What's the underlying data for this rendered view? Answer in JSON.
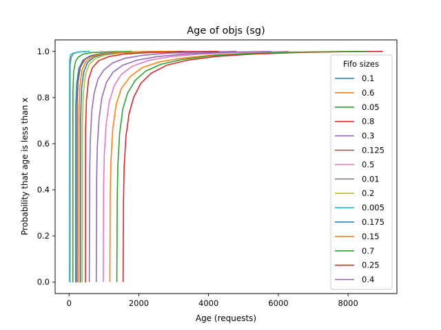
{
  "chart_data": {
    "type": "line",
    "title": "Age of objs (sg)",
    "xlabel": "Age (requests)",
    "ylabel": "Probability that age is less than x",
    "xlim": [
      -400,
      9400
    ],
    "ylim": [
      -0.05,
      1.05
    ],
    "xticks": [
      0,
      2000,
      4000,
      6000,
      8000
    ],
    "xtick_labels": [
      "0",
      "2000",
      "4000",
      "6000",
      "8000"
    ],
    "yticks": [
      0.0,
      0.2,
      0.4,
      0.6,
      0.8,
      1.0
    ],
    "ytick_labels": [
      "0.0",
      "0.2",
      "0.4",
      "0.6",
      "0.8",
      "1.0"
    ],
    "grid": false,
    "legend": {
      "title": "Fifo sizes",
      "location": "right"
    },
    "series": [
      {
        "name": "0.1",
        "color": "#1f77b4",
        "points": [
          [
            180,
            0.0
          ],
          [
            190,
            0.0
          ],
          [
            192,
            0.76
          ],
          [
            220,
            0.86
          ],
          [
            280,
            0.925
          ],
          [
            400,
            0.962
          ],
          [
            600,
            0.98
          ],
          [
            900,
            0.99
          ],
          [
            1400,
            0.996
          ],
          [
            2200,
            0.999
          ],
          [
            3200,
            1.0
          ]
        ]
      },
      {
        "name": "0.6",
        "color": "#ff7f0e",
        "points": [
          [
            1170,
            0.0
          ],
          [
            1180,
            0.38
          ],
          [
            1200,
            0.52
          ],
          [
            1250,
            0.66
          ],
          [
            1350,
            0.77
          ],
          [
            1500,
            0.84
          ],
          [
            1750,
            0.89
          ],
          [
            2100,
            0.93
          ],
          [
            2600,
            0.955
          ],
          [
            3300,
            0.972
          ],
          [
            4200,
            0.985
          ],
          [
            5500,
            0.993
          ],
          [
            7000,
            0.998
          ],
          [
            8500,
            1.0
          ]
        ]
      },
      {
        "name": "0.05",
        "color": "#2ca02c",
        "points": [
          [
            100,
            0.0
          ],
          [
            108,
            0.0
          ],
          [
            110,
            0.82
          ],
          [
            130,
            0.91
          ],
          [
            180,
            0.955
          ],
          [
            260,
            0.975
          ],
          [
            400,
            0.988
          ],
          [
            650,
            0.995
          ],
          [
            1100,
            0.998
          ],
          [
            1800,
            1.0
          ]
        ]
      },
      {
        "name": "0.8",
        "color": "#d62728",
        "points": [
          [
            1550,
            0.0
          ],
          [
            1560,
            0.35
          ],
          [
            1580,
            0.5
          ],
          [
            1630,
            0.63
          ],
          [
            1720,
            0.73
          ],
          [
            1850,
            0.8
          ],
          [
            2050,
            0.86
          ],
          [
            2350,
            0.905
          ],
          [
            2800,
            0.94
          ],
          [
            3400,
            0.962
          ],
          [
            4200,
            0.978
          ],
          [
            5200,
            0.988
          ],
          [
            6500,
            0.995
          ],
          [
            8000,
            0.999
          ],
          [
            9000,
            1.0
          ]
        ]
      },
      {
        "name": "0.3",
        "color": "#9467bd",
        "points": [
          [
            580,
            0.0
          ],
          [
            590,
            0.48
          ],
          [
            610,
            0.62
          ],
          [
            650,
            0.74
          ],
          [
            720,
            0.82
          ],
          [
            830,
            0.88
          ],
          [
            1000,
            0.92
          ],
          [
            1250,
            0.95
          ],
          [
            1600,
            0.97
          ],
          [
            2100,
            0.983
          ],
          [
            2800,
            0.992
          ],
          [
            3700,
            0.997
          ],
          [
            4800,
            1.0
          ]
        ]
      },
      {
        "name": "0.125",
        "color": "#8c564b",
        "points": [
          [
            220,
            0.0
          ],
          [
            230,
            0.0
          ],
          [
            232,
            0.78
          ],
          [
            260,
            0.87
          ],
          [
            320,
            0.93
          ],
          [
            450,
            0.965
          ],
          [
            650,
            0.982
          ],
          [
            950,
            0.991
          ],
          [
            1450,
            0.996
          ],
          [
            2200,
            0.999
          ],
          [
            3300,
            1.0
          ]
        ]
      },
      {
        "name": "0.5",
        "color": "#e377c2",
        "points": [
          [
            980,
            0.0
          ],
          [
            990,
            0.41
          ],
          [
            1010,
            0.55
          ],
          [
            1060,
            0.68
          ],
          [
            1150,
            0.78
          ],
          [
            1290,
            0.85
          ],
          [
            1500,
            0.9
          ],
          [
            1800,
            0.935
          ],
          [
            2250,
            0.96
          ],
          [
            2900,
            0.977
          ],
          [
            3700,
            0.988
          ],
          [
            4800,
            0.995
          ],
          [
            6300,
            1.0
          ]
        ]
      },
      {
        "name": "0.01",
        "color": "#7f7f7f",
        "points": [
          [
            20,
            0.0
          ],
          [
            28,
            0.0
          ],
          [
            30,
            0.94
          ],
          [
            60,
            0.975
          ],
          [
            120,
            0.99
          ],
          [
            250,
            0.997
          ],
          [
            500,
            1.0
          ]
        ]
      },
      {
        "name": "0.2",
        "color": "#bcbd22",
        "points": [
          [
            370,
            0.0
          ],
          [
            380,
            0.0
          ],
          [
            382,
            0.7
          ],
          [
            410,
            0.82
          ],
          [
            470,
            0.9
          ],
          [
            580,
            0.945
          ],
          [
            760,
            0.97
          ],
          [
            1050,
            0.985
          ],
          [
            1500,
            0.993
          ],
          [
            2200,
            0.998
          ],
          [
            3100,
            1.0
          ]
        ]
      },
      {
        "name": "0.005",
        "color": "#17becf",
        "points": [
          [
            10,
            0.0
          ],
          [
            14,
            0.0
          ],
          [
            15,
            0.96
          ],
          [
            40,
            0.985
          ],
          [
            120,
            0.993
          ],
          [
            300,
            0.998
          ],
          [
            600,
            1.0
          ]
        ]
      },
      {
        "name": "0.175",
        "color": "#1f77b4",
        "points": [
          [
            320,
            0.0
          ],
          [
            330,
            0.0
          ],
          [
            332,
            0.72
          ],
          [
            360,
            0.84
          ],
          [
            420,
            0.91
          ],
          [
            530,
            0.952
          ],
          [
            710,
            0.975
          ],
          [
            1000,
            0.988
          ],
          [
            1450,
            0.995
          ],
          [
            2150,
            0.999
          ],
          [
            3000,
            1.0
          ]
        ]
      },
      {
        "name": "0.15",
        "color": "#ff7f0e",
        "points": [
          [
            270,
            0.0
          ],
          [
            280,
            0.0
          ],
          [
            282,
            0.74
          ],
          [
            310,
            0.85
          ],
          [
            370,
            0.92
          ],
          [
            490,
            0.958
          ],
          [
            680,
            0.978
          ],
          [
            980,
            0.99
          ],
          [
            1450,
            0.996
          ],
          [
            2200,
            0.999
          ],
          [
            3100,
            1.0
          ]
        ]
      },
      {
        "name": "0.7",
        "color": "#2ca02c",
        "points": [
          [
            1370,
            0.0
          ],
          [
            1380,
            0.36
          ],
          [
            1400,
            0.51
          ],
          [
            1450,
            0.645
          ],
          [
            1540,
            0.75
          ],
          [
            1680,
            0.82
          ],
          [
            1900,
            0.875
          ],
          [
            2200,
            0.915
          ],
          [
            2650,
            0.945
          ],
          [
            3250,
            0.965
          ],
          [
            4000,
            0.98
          ],
          [
            5000,
            0.99
          ],
          [
            6300,
            0.996
          ],
          [
            7800,
            0.999
          ],
          [
            8500,
            1.0
          ]
        ]
      },
      {
        "name": "0.25",
        "color": "#d62728",
        "points": [
          [
            460,
            0.0
          ],
          [
            470,
            0.0
          ],
          [
            472,
            0.66
          ],
          [
            500,
            0.79
          ],
          [
            560,
            0.88
          ],
          [
            670,
            0.93
          ],
          [
            850,
            0.96
          ],
          [
            1150,
            0.978
          ],
          [
            1600,
            0.989
          ],
          [
            2300,
            0.995
          ],
          [
            3300,
            0.999
          ],
          [
            4300,
            1.0
          ]
        ]
      },
      {
        "name": "0.4",
        "color": "#9467bd",
        "points": [
          [
            780,
            0.0
          ],
          [
            790,
            0.45
          ],
          [
            810,
            0.59
          ],
          [
            860,
            0.71
          ],
          [
            940,
            0.8
          ],
          [
            1070,
            0.865
          ],
          [
            1260,
            0.91
          ],
          [
            1540,
            0.94
          ],
          [
            1950,
            0.962
          ],
          [
            2550,
            0.978
          ],
          [
            3350,
            0.989
          ],
          [
            4400,
            0.996
          ],
          [
            5800,
            1.0
          ]
        ]
      }
    ]
  }
}
